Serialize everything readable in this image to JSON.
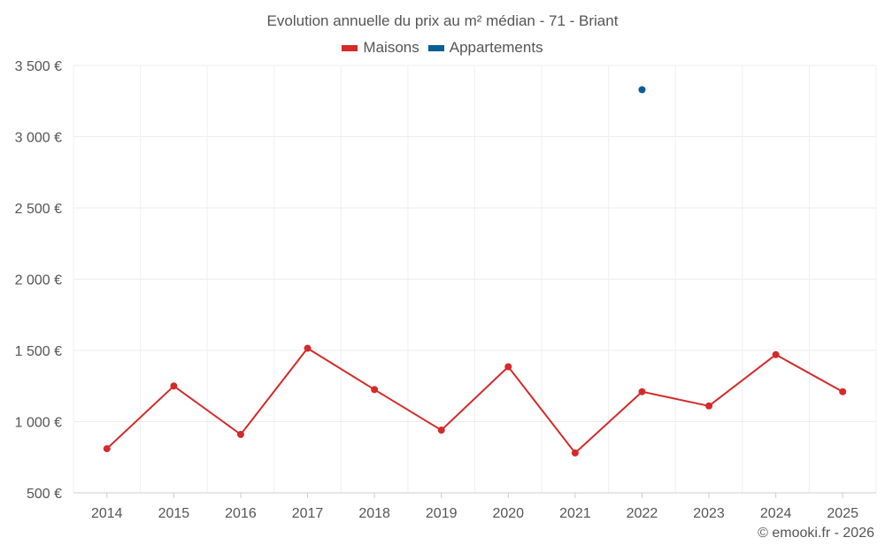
{
  "chart_data": {
    "type": "line",
    "title": "Evolution annuelle du prix au m² médian - 71 - Briant",
    "categories": [
      "2014",
      "2015",
      "2016",
      "2017",
      "2018",
      "2019",
      "2020",
      "2021",
      "2022",
      "2023",
      "2024",
      "2025"
    ],
    "series": [
      {
        "name": "Maisons",
        "color": "#d42a2a",
        "values": [
          810,
          1250,
          910,
          1515,
          1225,
          940,
          1385,
          780,
          1210,
          1110,
          1470,
          1210
        ]
      },
      {
        "name": "Appartements",
        "color": "#0a5e94",
        "values": [
          null,
          null,
          null,
          null,
          null,
          null,
          null,
          null,
          3330,
          null,
          null,
          null
        ]
      }
    ],
    "ylim": [
      500,
      3500
    ],
    "yticks": [
      500,
      1000,
      1500,
      2000,
      2500,
      3000,
      3500
    ],
    "ytick_labels": [
      "500 €",
      "1 000 €",
      "1 500 €",
      "2 000 €",
      "2 500 €",
      "3 000 €",
      "3 500 €"
    ],
    "grid": true,
    "legend_position": "top-center"
  },
  "credit": "© emooki.fr - 2026"
}
